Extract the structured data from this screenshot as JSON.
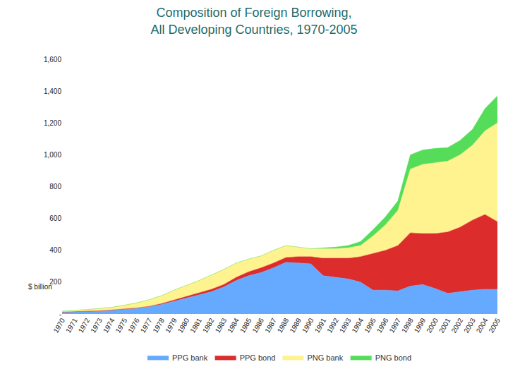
{
  "chart_data": {
    "type": "area",
    "stacked": true,
    "title": "Composition of Foreign Borrowing,\nAll Developing Countries, 1970-2005",
    "y_label": "$ billion",
    "categories": [
      "1970",
      "1971",
      "1972",
      "1973",
      "1974",
      "1975",
      "1976",
      "1977",
      "1978",
      "1979",
      "1980",
      "1981",
      "1982",
      "1983",
      "1984",
      "1985",
      "1986",
      "1987",
      "1988",
      "1989",
      "1990",
      "1991",
      "1992",
      "1993",
      "1994",
      "1995",
      "1996",
      "1997",
      "1998",
      "1999",
      "2000",
      "2001",
      "2002",
      "2003",
      "2004",
      "2005"
    ],
    "series": [
      {
        "name": "PPG bank",
        "color": "#66aaff",
        "values": [
          10,
          12,
          15,
          18,
          22,
          28,
          35,
          45,
          60,
          80,
          100,
          120,
          140,
          170,
          210,
          240,
          260,
          290,
          325,
          320,
          315,
          240,
          230,
          220,
          200,
          150,
          150,
          145,
          175,
          185,
          160,
          130,
          140,
          150,
          155,
          155
        ]
      },
      {
        "name": "PPG bond",
        "color": "#dd2c2c",
        "values": [
          2,
          2,
          2,
          2,
          3,
          3,
          3,
          3,
          5,
          8,
          10,
          10,
          15,
          15,
          20,
          25,
          30,
          30,
          30,
          40,
          45,
          110,
          120,
          130,
          160,
          230,
          250,
          285,
          335,
          320,
          345,
          385,
          405,
          440,
          470,
          425
        ]
      },
      {
        "name": "PNG bank",
        "color": "#fff38f",
        "values": [
          6,
          8,
          11,
          15,
          17,
          24,
          32,
          42,
          50,
          62,
          70,
          80,
          90,
          95,
          90,
          80,
          75,
          80,
          75,
          60,
          50,
          60,
          60,
          65,
          70,
          110,
          160,
          220,
          400,
          435,
          445,
          445,
          455,
          470,
          525,
          620
        ]
      },
      {
        "name": "PNG bond",
        "color": "#55dd5a",
        "values": [
          0,
          0,
          0,
          0,
          0,
          0,
          0,
          0,
          0,
          0,
          0,
          0,
          0,
          0,
          0,
          0,
          0,
          0,
          0,
          0,
          0,
          5,
          10,
          15,
          25,
          40,
          50,
          60,
          90,
          90,
          90,
          85,
          90,
          100,
          140,
          170
        ]
      }
    ],
    "ylim": [
      0,
      1600
    ],
    "yticks": [
      {
        "value": 0,
        "label": "-"
      },
      200,
      400,
      600,
      800,
      {
        "value": 1000,
        "label": "1,000"
      },
      {
        "value": 1200,
        "label": "1,200"
      },
      {
        "value": 1400,
        "label": "1,400"
      },
      {
        "value": 1600,
        "label": "1,600"
      }
    ],
    "grid": false,
    "legend": "bottom"
  }
}
